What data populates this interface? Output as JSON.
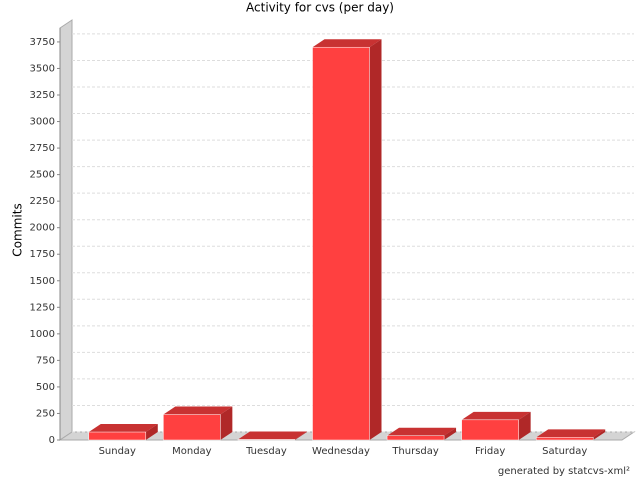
{
  "chart_data": {
    "type": "bar3d",
    "title": "Activity for cvs (per day)",
    "y_label": "Commits",
    "categories": [
      "Sunday",
      "Monday",
      "Tuesday",
      "Wednesday",
      "Thursday",
      "Friday",
      "Saturday"
    ],
    "values": [
      75,
      240,
      5,
      3700,
      40,
      190,
      25
    ],
    "color": "#ff4040",
    "ylim": [
      0,
      3900
    ],
    "yticks": [
      0,
      250,
      500,
      750,
      1000,
      1250,
      1500,
      1750,
      2000,
      2250,
      2500,
      2750,
      3000,
      3250,
      3500,
      3750
    ],
    "grid": true,
    "footer": "generated by statcvs-xml²"
  }
}
